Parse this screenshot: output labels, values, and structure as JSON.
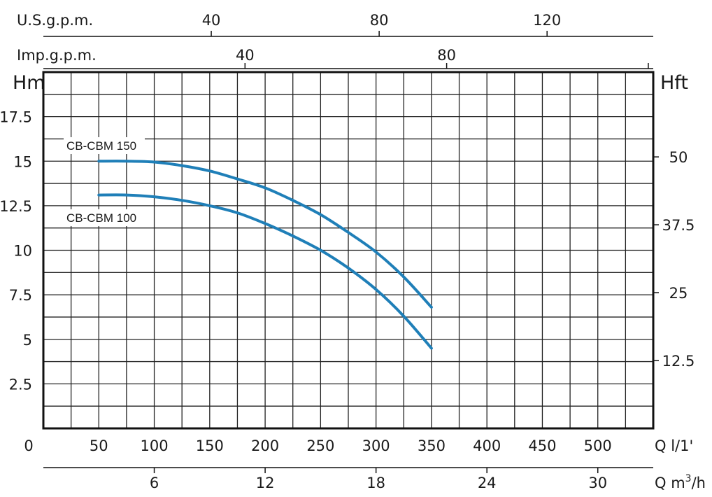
{
  "chart_data": {
    "type": "line",
    "x_unit": "Q l/1'",
    "xlim": [
      0,
      550
    ],
    "y_unit": "Hm",
    "ylim": [
      0,
      20
    ],
    "x_tick_values": [
      0,
      50,
      100,
      150,
      200,
      250,
      300,
      350,
      400,
      450,
      500
    ],
    "x_tick_labels": [
      "0",
      "50",
      "100",
      "150",
      "200",
      "250",
      "300",
      "350",
      "400",
      "450",
      "500"
    ],
    "y_tick_values": [
      2.5,
      5,
      7.5,
      10,
      12.5,
      15,
      17.5
    ],
    "y_tick_labels": [
      "2.5",
      "5",
      "7.5",
      "10",
      "12.5",
      "15",
      "17.5"
    ],
    "grid": true,
    "x_grid_values": [
      0,
      25,
      50,
      75,
      100,
      125,
      150,
      175,
      200,
      225,
      250,
      275,
      300,
      325,
      350,
      375,
      400,
      425,
      450,
      475,
      500,
      525,
      550
    ],
    "y_grid_values": [
      0,
      1.25,
      2.5,
      3.75,
      5,
      6.25,
      7.5,
      8.75,
      10,
      11.25,
      12.5,
      13.75,
      15,
      16.25,
      17.5,
      18.75,
      20
    ],
    "series": [
      {
        "name": "CB-CBM 150",
        "color": "#1f7fb8",
        "x": [
          50,
          75,
          100,
          125,
          150,
          175,
          200,
          225,
          250,
          275,
          300,
          325,
          350
        ],
        "y": [
          15.0,
          15.0,
          14.95,
          14.75,
          14.45,
          14.0,
          13.5,
          12.8,
          12.0,
          11.0,
          9.9,
          8.5,
          6.8
        ]
      },
      {
        "name": "CB-CBM 100",
        "color": "#1f7fb8",
        "x": [
          50,
          75,
          100,
          125,
          150,
          175,
          200,
          225,
          250,
          275,
          300,
          325,
          350
        ],
        "y": [
          13.1,
          13.1,
          13.0,
          12.8,
          12.5,
          12.1,
          11.5,
          10.8,
          10.0,
          9.0,
          7.8,
          6.3,
          4.5
        ]
      }
    ],
    "secondary_axes": {
      "top_us": {
        "unit": "U.S.g.p.m.",
        "q_per_unit": 3.7854,
        "tick_values": [
          40,
          80,
          120
        ],
        "tick_labels": [
          "40",
          "80",
          "120"
        ]
      },
      "top_imp": {
        "unit": "Imp.g.p.m.",
        "q_per_unit": 4.5461,
        "tick_values": [
          40,
          80
        ],
        "tick_labels": [
          "40",
          "80"
        ],
        "extra_tick_values": [
          120
        ]
      },
      "right_hft": {
        "unit": "Hft",
        "m_per_unit": 0.3048,
        "tick_values": [
          12.5,
          25,
          37.5,
          50
        ],
        "tick_labels": [
          "12.5",
          "25",
          "37.5",
          "50"
        ]
      },
      "bottom_m3h": {
        "unit_prefix": "Q m",
        "unit_exp": "3",
        "unit_suffix": "/h",
        "q_per_unit": 16.6667,
        "tick_values": [
          6,
          12,
          18,
          24,
          30
        ],
        "tick_labels": [
          "6",
          "12",
          "18",
          "24",
          "30"
        ]
      }
    }
  }
}
